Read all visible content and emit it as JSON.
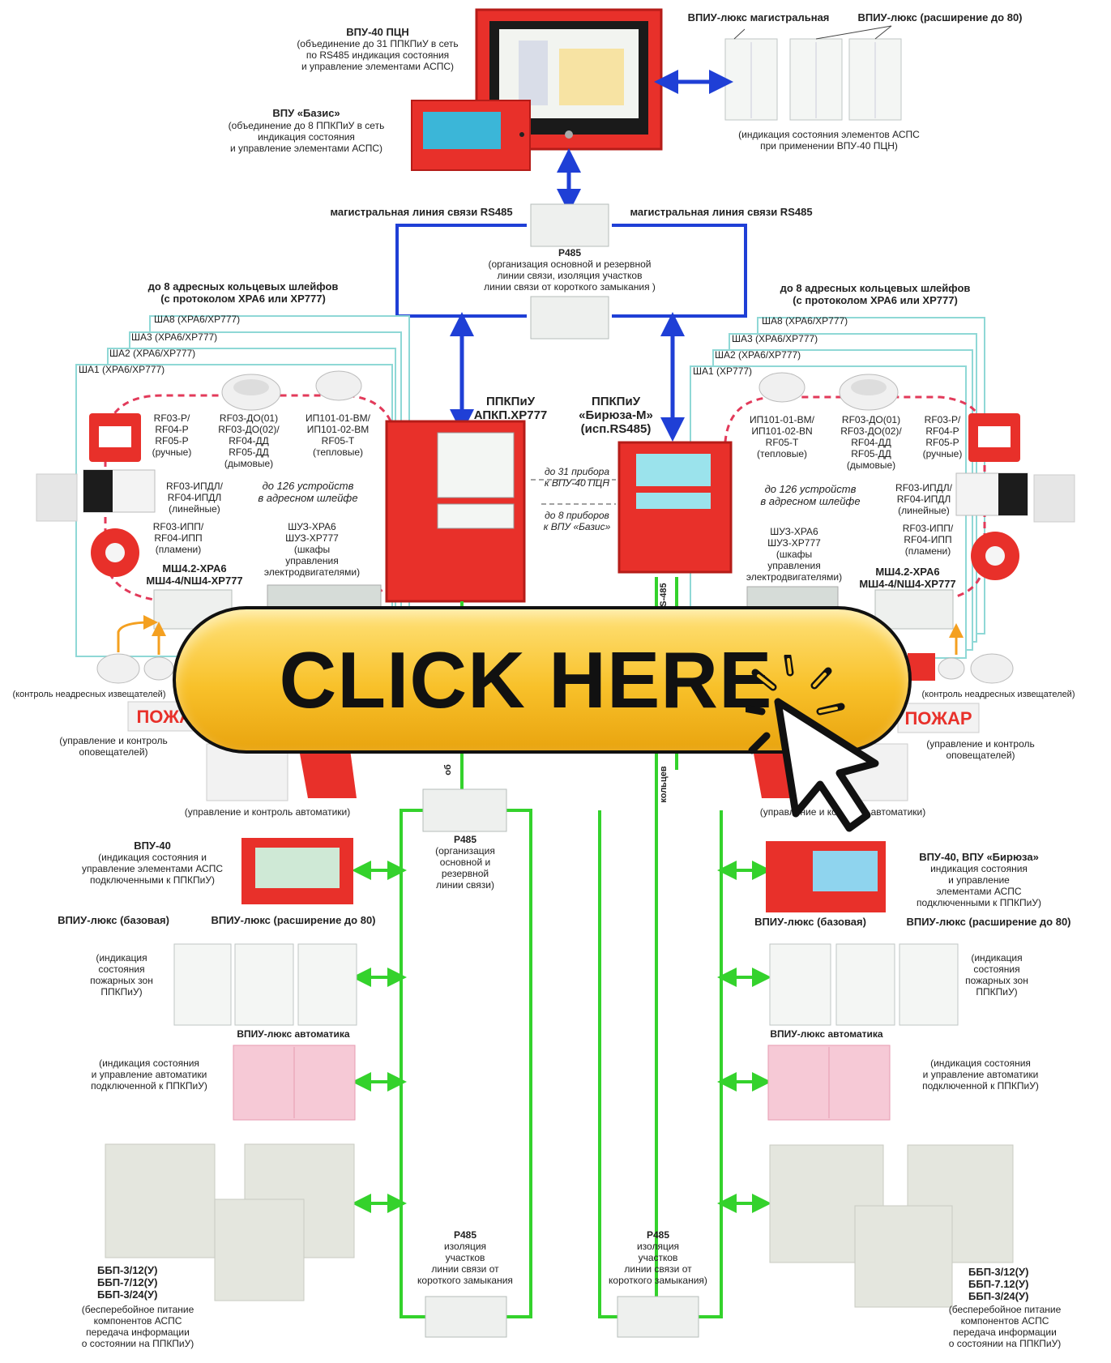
{
  "cta": {
    "label": "CLICK HERE"
  },
  "top": {
    "vpu40_pcn": {
      "title": "ВПУ-40 ПЦН",
      "lines": [
        "(объединение до 31 ППКПиУ в сеть",
        "по RS485 индикация состояния",
        "и управление элементами АСПС)"
      ]
    },
    "vpu_baza": {
      "title": "ВПУ «Базис»",
      "lines": [
        "(объединение до 8 ППКПиУ в сеть",
        "индикация состояния",
        "и управление элементами АСПС)"
      ]
    },
    "vpiu_main": "ВПИУ-люкс магистральная",
    "vpiu_ext": "ВПИУ-люкс (расширение до 80)",
    "vpiu_caption": [
      "(индикация состояния элементов АСПС",
      "при применении ВПУ-40 ПЦН)"
    ]
  },
  "trunk": {
    "left_label": "магистральная линия связи RS485",
    "right_label": "магистральная линия связи RS485",
    "p485_title": "Р485",
    "p485_lines": [
      "(организация основной и резервной",
      "линии связи, изоляция участков",
      "линии связи от короткого замыкания )"
    ]
  },
  "left_loop": {
    "header": [
      "до 8 адресных кольцевых шлейфов",
      "(с протоколом XPA6 или XP777)"
    ],
    "tabs": [
      "ША8 (XPA6/XP777)",
      "ША3 (XPA6/XP777)",
      "ША2 (XPA6/XP777)",
      "ША1 (XPA6/XP777)"
    ],
    "manual": [
      "RF03-P/",
      "RF04-P",
      "RF05-P",
      "(ручные)"
    ],
    "smoke": [
      "RF03-ДО(01)",
      "RF03-ДО(02)/",
      "RF04-ДД",
      "RF05-ДД",
      "(дымовые)"
    ],
    "heat": [
      "ИП101-01-BM/",
      "ИП101-02-BM",
      "RF05-T",
      "(тепловые)"
    ],
    "linear": [
      "RF03-ИПДЛ/",
      "RF04-ИПДЛ",
      "(линейные)"
    ],
    "capacity": [
      "до 126 устройств",
      "в адресном шлейфе"
    ],
    "flame": [
      "RF03-ИПП/",
      "RF04-ИПП",
      "(пламени)"
    ],
    "shuz": [
      "ШУЗ-XPA6",
      "ШУЗ-XP777",
      "(шкафы",
      "управления",
      "электродвигателями)"
    ],
    "msh": [
      "МШ4.2-XPA6",
      "МШ4-4/NШ4-XP777"
    ],
    "nonaddr": "(контроль неадресных извещателей)",
    "pozhar": "ПОЖАР",
    "sounders": [
      "(управление и контроль",
      "оповещателей)"
    ],
    "auto": "(управление и контроль автоматики)"
  },
  "right_loop": {
    "header": [
      "до 8 адресных кольцевых шлейфов",
      "(с протоколом XPA6 или XP777)"
    ],
    "tabs": [
      "ША8 (XPA6/XP777)",
      "ША3 (XPA6/XP777)",
      "ША2 (XPA6/XP777)",
      "ША1 (XP777)"
    ],
    "heat": [
      "ИП101-01-BM/",
      "ИП101-02-BN",
      "RF05-T",
      "(тепловые)"
    ],
    "smoke": [
      "RF03-ДО(01)",
      "RF03-ДО(02)/",
      "RF04-ДД",
      "RF05-ДД",
      "(дымовые)"
    ],
    "manual": [
      "RF03-P/",
      "RF04-P",
      "RF05-P",
      "(ручные)"
    ],
    "capacity": [
      "до 126 устройств",
      "в адресном шлейфе"
    ],
    "linear": [
      "RF03-ИПДЛ/",
      "RF04-ИПДЛ",
      "(линейные)"
    ],
    "shuz": [
      "ШУЗ-XPA6",
      "ШУЗ-XP777",
      "(шкафы",
      "управления",
      "электродвигателями)"
    ],
    "flame": [
      "RF03-ИПП/",
      "RF04-ИПП",
      "(пламени)"
    ],
    "msh": [
      "МШ4.2-XPA6",
      "МШ4-4/NШ4-XP777"
    ],
    "nonaddr": "(контроль неадресных извещателей)",
    "pozhar": "ПОЖАР",
    "sounders": [
      "(управление и контроль",
      "оповещателей)"
    ],
    "auto": "(управление и контроль автоматики)"
  },
  "panels": {
    "left": [
      "ППКПиУ",
      "АПКП.XP777"
    ],
    "right": [
      "ППКПиУ",
      "«Бирюза-М»",
      "(исп.RS485)"
    ],
    "note1": [
      "до 31 прибора",
      "к ВПУ-40 ПЦН"
    ],
    "note2": [
      "до 8 приборов",
      "к ВПУ «Базис»"
    ],
    "bus_left": "об",
    "bus_right_top": "RS-485",
    "bus_right_mid": "кольцев"
  },
  "bottom_left": {
    "vpu40": {
      "title": "ВПУ-40",
      "lines": [
        "(индикация состояния и",
        "управление элементами АСПС",
        "подключенными к ППКПиУ)"
      ]
    },
    "vpiu_base": "ВПИУ-люкс (базовая)",
    "vpiu_ext": "ВПИУ-люкс (расширение до 80)",
    "zones": [
      "(индикация",
      "состояния",
      "пожарных зон",
      "ППКПиУ)"
    ],
    "auto_title": "ВПИУ-люкс автоматика",
    "auto_lines": [
      "(индикация состояния",
      "и управление автоматики",
      "подключенной к ППКПиУ)"
    ],
    "psu_models": [
      "ББП-3/12(У)",
      "ББП-7/12(У)",
      "ББП-3/24(У)"
    ],
    "psu_lines": [
      "(бесперебойное питание",
      "компонентов АСПС",
      "передача информации",
      "о состоянии на ППКПиУ)"
    ]
  },
  "bottom_right": {
    "vpu": {
      "title": "ВПУ-40, ВПУ «Бирюза»",
      "lines": [
        "индикация состояния",
        "и управление",
        "элементами АСПС",
        "подключенными к ППКПиУ)"
      ]
    },
    "vpiu_base": "ВПИУ-люкс (базовая)",
    "vpiu_ext": "ВПИУ-люкс (расширение до 80)",
    "zones": [
      "(индикация",
      "состояния",
      "пожарных зон",
      "ППКПиУ)"
    ],
    "auto_title": "ВПИУ-люкс автоматика",
    "auto_lines": [
      "(индикация состояния",
      "и управление автоматики",
      "подключенной к ППКПиУ)"
    ],
    "psu_models": [
      "ББП-3/12(У)",
      "ББП-7.12(У)",
      "ББП-3/24(У)"
    ],
    "psu_lines": [
      "(бесперебойное питание",
      "компонентов АСПС",
      "передача информации",
      "о состоянии на ППКПиУ)"
    ]
  },
  "p485_mid": {
    "title": "Р485",
    "lines": [
      "(организация",
      "основной и",
      "резервной",
      "линии связи)"
    ]
  },
  "p485_left_bottom": {
    "title": "Р485",
    "lines": [
      "изоляция",
      "участков",
      "линии связи от",
      "короткого замыкания"
    ]
  },
  "p485_right_bottom": {
    "title": "Р485",
    "lines": [
      "изоляция",
      "участков",
      "линии связи от",
      "короткого замыкания)"
    ]
  },
  "colors": {
    "blue": "#1f3fd6",
    "green": "#34d22c",
    "red": "#e8302a",
    "teal": "#8fd8d6",
    "orange": "#f4a020",
    "pink": "#f6c9d6"
  }
}
